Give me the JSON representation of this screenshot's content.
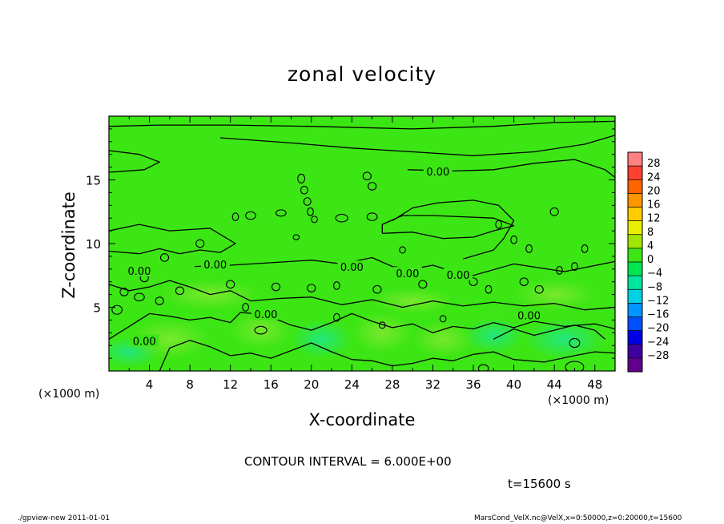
{
  "chart_data": {
    "type": "heatmap",
    "title": "zonal velocity",
    "xlabel": "X-coordinate",
    "ylabel": "Z-coordinate",
    "x_unit": "(×1000 m)",
    "x_ticks": [
      4,
      8,
      12,
      16,
      20,
      24,
      28,
      32,
      36,
      40,
      44,
      48
    ],
    "y_ticks": [
      5,
      10,
      15
    ],
    "xlim": [
      0,
      50
    ],
    "ylim": [
      0,
      20
    ],
    "colorbar": {
      "levels": [
        -28,
        -24,
        -20,
        -16,
        -12,
        -8,
        -4,
        0,
        4,
        8,
        12,
        16,
        20,
        24,
        28
      ],
      "labels": [
        "28",
        "24",
        "20",
        "16",
        "12",
        "8",
        "4",
        "0",
        "−4",
        "−8",
        "−12",
        "−16",
        "−20",
        "−24",
        "−28"
      ],
      "colors": [
        "#ff8080",
        "#ff4030",
        "#ff6400",
        "#ff9600",
        "#ffcc00",
        "#e6f000",
        "#a0e600",
        "#3ce614",
        "#00e650",
        "#00e6a0",
        "#00d2e6",
        "#0096ff",
        "#0050ff",
        "#0000e6",
        "#4000a0",
        "#60008c"
      ]
    },
    "contour_interval": 6.0,
    "contour_labels": [
      {
        "text": "0.00",
        "x": 32.5,
        "z": 15.6
      },
      {
        "text": "0.00",
        "x": 10.5,
        "z": 8.3
      },
      {
        "text": "0.00",
        "x": 3.0,
        "z": 7.8
      },
      {
        "text": "0.00",
        "x": 24.0,
        "z": 8.1
      },
      {
        "text": "0.00",
        "x": 29.5,
        "z": 7.6
      },
      {
        "text": "0.00",
        "x": 34.5,
        "z": 7.5
      },
      {
        "text": "0.00",
        "x": 15.5,
        "z": 4.4
      },
      {
        "text": "0.00",
        "x": 41.5,
        "z": 4.3
      },
      {
        "text": "0.00",
        "x": 3.5,
        "z": 2.3
      }
    ]
  },
  "contour_text": "CONTOUR INTERVAL = 6.000E+00",
  "time_text": "t=15600 s",
  "footer_left": "./gpview-new  2011-01-01",
  "footer_right": "MarsCond_VelX.nc@VelX,x=0:50000,z=0:20000,t=15600"
}
